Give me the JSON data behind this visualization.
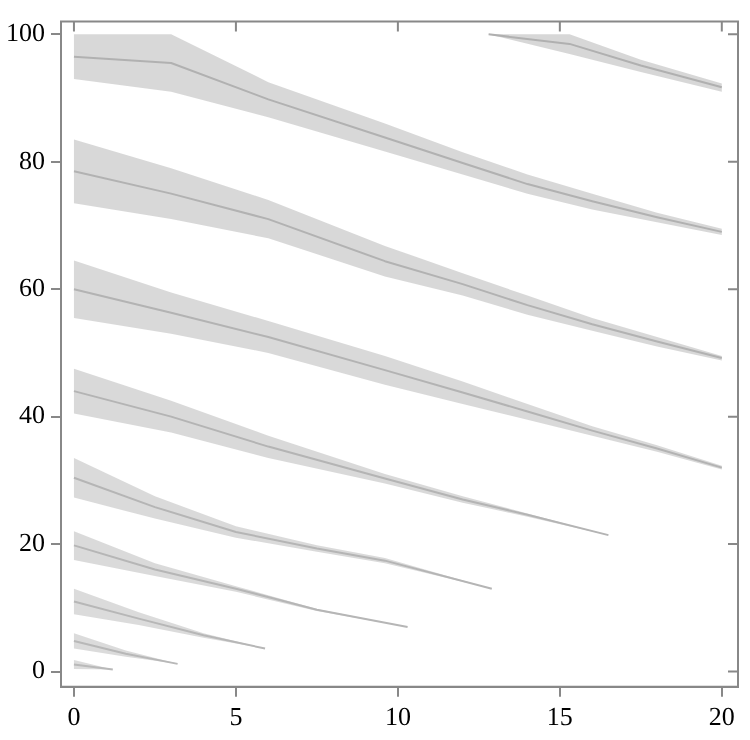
{
  "chart_data": {
    "type": "line",
    "xlim": [
      -0.4,
      20.5
    ],
    "ylim": [
      -2.4,
      102
    ],
    "xticks": [
      0,
      5,
      10,
      15,
      20
    ],
    "yticks": [
      0,
      20,
      40,
      60,
      80,
      100
    ],
    "grid": false,
    "legend": false,
    "marker": "none",
    "series": [
      {
        "color": "#b0b0b0",
        "x": [
          12.8,
          15.3,
          17.5,
          20
        ],
        "values": [
          100,
          98.5,
          95.1,
          91.7
        ],
        "upper": [
          100,
          100,
          96,
          92.3
        ],
        "lower": [
          100,
          96.9,
          94.1,
          91
        ]
      },
      {
        "color": "#b1b1b1",
        "x": [
          0,
          3,
          6,
          9.6,
          12,
          14,
          16,
          18,
          20
        ],
        "values": [
          96.5,
          95.5,
          89.8,
          83.8,
          79.8,
          76.5,
          73.8,
          71.3,
          69
        ],
        "upper": [
          100,
          100,
          92.5,
          86,
          81.5,
          78,
          75,
          72,
          69.5
        ],
        "lower": [
          93,
          91,
          87,
          81.6,
          78,
          75,
          72.5,
          70.5,
          68.5
        ]
      },
      {
        "color": "#b2b2b2",
        "x": [
          0,
          3,
          6,
          9.6,
          12,
          14,
          16,
          18,
          20
        ],
        "values": [
          78.5,
          75,
          71,
          64.4,
          60.8,
          57.5,
          54.5,
          51.8,
          49.2
        ],
        "upper": [
          83.5,
          79,
          74,
          66.8,
          62.5,
          59,
          55.5,
          52.5,
          49.5
        ],
        "lower": [
          73.5,
          71,
          68,
          62,
          59,
          56,
          53.5,
          51,
          48.8
        ]
      },
      {
        "color": "#b3b3b3",
        "x": [
          0,
          3,
          6,
          9.6,
          12,
          14,
          16,
          18,
          20
        ],
        "values": [
          60,
          56.3,
          52.5,
          47.3,
          43.8,
          40.8,
          37.8,
          35,
          32
        ],
        "upper": [
          64.5,
          59.5,
          55,
          49.5,
          45.5,
          42,
          38.5,
          35.5,
          32.3
        ],
        "lower": [
          55.5,
          53,
          50,
          45,
          42,
          39.5,
          37,
          34.5,
          31.7
        ]
      },
      {
        "color": "#b4b4b4",
        "x": [
          0,
          3,
          6,
          9.6,
          12,
          14,
          16.5
        ],
        "values": [
          44,
          40,
          35.3,
          30.3,
          27,
          24.6,
          21.4
        ],
        "upper": [
          47.5,
          42.5,
          37,
          31,
          27.5,
          24.8,
          21.4
        ],
        "lower": [
          40.5,
          37.5,
          33.5,
          29.5,
          26.5,
          24.3,
          21.4
        ]
      },
      {
        "color": "#b5b5b5",
        "x": [
          0,
          2.5,
          5,
          7.5,
          9.6,
          12.9
        ],
        "values": [
          30.4,
          25.8,
          21.9,
          19.3,
          17.4,
          13
        ],
        "upper": [
          33.5,
          27.5,
          22.8,
          19.8,
          17.8,
          13
        ],
        "lower": [
          27.3,
          24,
          21,
          18.8,
          17,
          13
        ]
      },
      {
        "color": "#b6b6b6",
        "x": [
          0,
          2.5,
          5,
          7.5,
          10.3
        ],
        "values": [
          19.8,
          16,
          13,
          9.7,
          7
        ],
        "upper": [
          22,
          17,
          13.4,
          9.8,
          7
        ],
        "lower": [
          17.5,
          15,
          12.5,
          9.5,
          7
        ]
      },
      {
        "color": "#b7b7b7",
        "x": [
          0,
          2,
          4,
          5.9
        ],
        "values": [
          11,
          8.3,
          5.7,
          3.6
        ],
        "upper": [
          13,
          9.3,
          6,
          3.6
        ],
        "lower": [
          9,
          7.3,
          5.3,
          3.6
        ]
      },
      {
        "color": "#b8b8b8",
        "x": [
          0,
          1.6,
          3.2
        ],
        "values": [
          4.8,
          2.8,
          1.2
        ],
        "upper": [
          6,
          3.3,
          1.2
        ],
        "lower": [
          3.6,
          2.3,
          1.2
        ]
      },
      {
        "color": "#b9b9b9",
        "x": [
          0,
          1.2
        ],
        "values": [
          1.1,
          0.3
        ],
        "upper": [
          1.8,
          0.3
        ],
        "lower": [
          0.4,
          0.3
        ]
      }
    ]
  }
}
